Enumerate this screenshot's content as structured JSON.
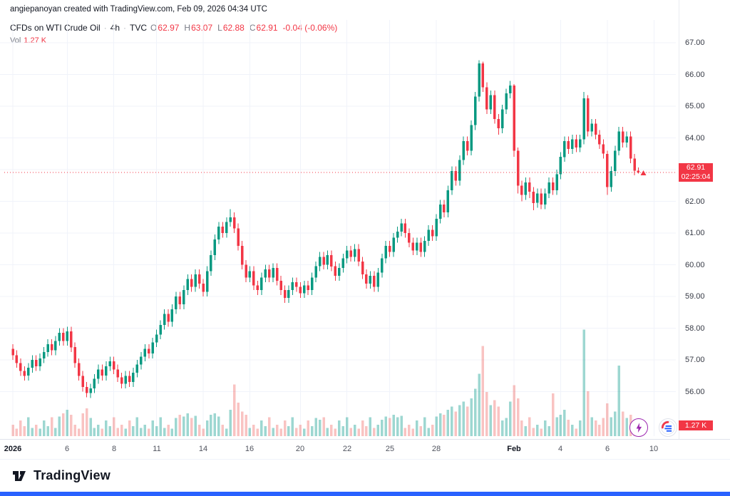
{
  "header": {
    "attribution": "angiepanoyan created with TradingView.com, Feb 09, 2026 04:34 UTC",
    "legend": {
      "symbol": "CFDs on WTI Crude Oil",
      "dot": "·",
      "interval": "4h",
      "exchange": "TVC",
      "ohlc": [
        {
          "key": "O",
          "value": "62.97"
        },
        {
          "key": "H",
          "value": "63.07"
        },
        {
          "key": "L",
          "value": "62.88"
        },
        {
          "key": "C",
          "value": "62.91"
        }
      ],
      "change": "-0.04 (-0.06%)",
      "vol_key": "Vol",
      "vol_value": "1.27 K"
    }
  },
  "price_axis": {
    "last_price_badge": {
      "price": "62.91",
      "countdown": "02:25:04"
    },
    "volume_badge": "1.27 K"
  },
  "footer": {
    "brand": "TradingView"
  },
  "icons": {
    "boost": "lightning-bolt",
    "brand_badge": "tradingview-round-logo"
  },
  "colors": {
    "up": "#089981",
    "down": "#f23645",
    "vol_up": "rgba(38,166,154,0.45)",
    "vol_down": "rgba(239,83,80,0.35)",
    "accent_red": "#f23645",
    "grid": "#f0f3fa",
    "blue_bar": "#2962ff"
  },
  "chart_data": {
    "type": "candlestick",
    "title": "CFDs on WTI Crude Oil · 4h · TVC",
    "last_price": 62.91,
    "last_change": -0.04,
    "last_change_pct": -0.06,
    "last_volume_k": 1.27,
    "countdown": "02:25:04",
    "visible_price_range": [
      54.6,
      67.7
    ],
    "y_ticks": [
      "67.00",
      "66.00",
      "65.00",
      "64.00",
      "63.00",
      "62.00",
      "61.00",
      "60.00",
      "59.00",
      "58.00",
      "57.00",
      "56.00"
    ],
    "time_ticks": [
      {
        "text": "2026",
        "index": 0,
        "bold": true
      },
      {
        "text": "6",
        "index": 14
      },
      {
        "text": "8",
        "index": 26
      },
      {
        "text": "11",
        "index": 37
      },
      {
        "text": "14",
        "index": 49
      },
      {
        "text": "16",
        "index": 61
      },
      {
        "text": "20",
        "index": 74
      },
      {
        "text": "22",
        "index": 86
      },
      {
        "text": "25",
        "index": 97
      },
      {
        "text": "28",
        "index": 109
      },
      {
        "text": "Feb",
        "index": 129,
        "bold": true
      },
      {
        "text": "4",
        "index": 141
      },
      {
        "text": "6",
        "index": 153
      },
      {
        "text": "10",
        "index": 165
      }
    ],
    "columns": [
      "open",
      "high",
      "low",
      "close",
      "volume_k"
    ],
    "candles": [
      [
        57.35,
        57.5,
        57.0,
        57.15,
        1.4
      ],
      [
        57.15,
        57.3,
        56.75,
        56.9,
        0.9
      ],
      [
        56.9,
        57.05,
        56.5,
        56.65,
        1.9
      ],
      [
        56.65,
        56.8,
        56.35,
        56.5,
        1.2
      ],
      [
        56.5,
        56.9,
        56.35,
        56.75,
        2.3
      ],
      [
        56.75,
        57.15,
        56.6,
        57.0,
        1.0
      ],
      [
        57.0,
        57.15,
        56.65,
        56.8,
        1.4
      ],
      [
        56.8,
        57.2,
        56.65,
        57.05,
        0.9
      ],
      [
        57.05,
        57.4,
        56.9,
        57.25,
        1.9
      ],
      [
        57.25,
        57.65,
        57.1,
        57.5,
        1.2
      ],
      [
        57.5,
        57.65,
        57.15,
        57.3,
        2.3
      ],
      [
        57.3,
        57.75,
        57.15,
        57.6,
        1.0
      ],
      [
        57.6,
        58.0,
        57.45,
        57.85,
        2.4
      ],
      [
        57.85,
        58.0,
        57.45,
        57.6,
        2.8
      ],
      [
        57.6,
        58.05,
        57.45,
        57.9,
        3.2
      ],
      [
        57.9,
        58.05,
        57.25,
        57.4,
        2.6
      ],
      [
        57.4,
        57.55,
        56.75,
        56.9,
        1.4
      ],
      [
        56.9,
        57.05,
        56.35,
        56.5,
        0.9
      ],
      [
        56.5,
        56.65,
        56.0,
        56.15,
        2.8
      ],
      [
        56.15,
        56.3,
        55.82,
        55.95,
        3.4
      ],
      [
        55.95,
        56.25,
        55.8,
        56.1,
        2.2
      ],
      [
        56.1,
        56.55,
        55.95,
        56.4,
        1.0
      ],
      [
        56.4,
        56.85,
        56.25,
        56.7,
        1.4
      ],
      [
        56.7,
        56.85,
        56.35,
        56.5,
        0.9
      ],
      [
        56.5,
        56.95,
        56.35,
        56.8,
        1.9
      ],
      [
        56.8,
        57.1,
        56.65,
        56.95,
        1.2
      ],
      [
        56.95,
        57.1,
        56.55,
        56.7,
        2.3
      ],
      [
        56.7,
        56.85,
        56.3,
        56.45,
        1.0
      ],
      [
        56.45,
        56.6,
        56.1,
        56.25,
        1.4
      ],
      [
        56.25,
        56.65,
        56.1,
        56.5,
        0.9
      ],
      [
        56.5,
        56.65,
        56.15,
        56.3,
        1.9
      ],
      [
        56.3,
        56.75,
        56.15,
        56.6,
        1.2
      ],
      [
        56.6,
        57.0,
        56.45,
        56.85,
        2.3
      ],
      [
        56.85,
        57.25,
        56.7,
        57.1,
        1.0
      ],
      [
        57.1,
        57.5,
        56.95,
        57.35,
        1.4
      ],
      [
        57.35,
        57.5,
        57.05,
        57.2,
        0.9
      ],
      [
        57.2,
        57.7,
        57.05,
        57.55,
        1.9
      ],
      [
        57.55,
        57.95,
        57.4,
        57.8,
        1.2
      ],
      [
        57.8,
        58.25,
        57.65,
        58.1,
        2.3
      ],
      [
        58.1,
        58.6,
        57.95,
        58.45,
        1.0
      ],
      [
        58.45,
        58.6,
        58.05,
        58.2,
        1.4
      ],
      [
        58.2,
        58.75,
        58.05,
        58.6,
        0.9
      ],
      [
        58.6,
        59.15,
        58.45,
        59.0,
        2.2
      ],
      [
        59.0,
        59.15,
        58.6,
        58.75,
        2.6
      ],
      [
        58.75,
        59.35,
        58.6,
        59.2,
        2.4
      ],
      [
        59.2,
        59.7,
        59.05,
        59.55,
        2.8
      ],
      [
        59.55,
        59.7,
        59.15,
        59.3,
        2.2
      ],
      [
        59.3,
        59.85,
        59.15,
        59.7,
        2.5
      ],
      [
        59.7,
        59.85,
        59.25,
        59.4,
        1.4
      ],
      [
        59.4,
        59.55,
        59.0,
        59.15,
        0.9
      ],
      [
        59.15,
        59.95,
        59.0,
        59.8,
        1.9
      ],
      [
        59.8,
        60.45,
        59.65,
        60.3,
        2.6
      ],
      [
        60.3,
        60.95,
        60.15,
        60.8,
        2.8
      ],
      [
        60.8,
        61.35,
        60.65,
        61.2,
        2.4
      ],
      [
        61.2,
        61.35,
        60.85,
        61.0,
        1.4
      ],
      [
        61.0,
        61.5,
        60.85,
        61.35,
        0.9
      ],
      [
        61.35,
        61.75,
        61.2,
        61.5,
        3.2
      ],
      [
        61.5,
        61.65,
        61.0,
        61.15,
        6.3
      ],
      [
        61.15,
        61.3,
        60.45,
        60.6,
        4.1
      ],
      [
        60.6,
        60.75,
        59.85,
        60.0,
        3.0
      ],
      [
        60.0,
        60.15,
        59.45,
        59.6,
        2.6
      ],
      [
        59.6,
        59.95,
        59.45,
        59.8,
        1.0
      ],
      [
        59.8,
        59.95,
        59.2,
        59.35,
        1.4
      ],
      [
        59.35,
        59.5,
        59.05,
        59.2,
        0.9
      ],
      [
        59.2,
        59.75,
        59.05,
        59.6,
        1.9
      ],
      [
        59.6,
        60.0,
        59.45,
        59.85,
        1.2
      ],
      [
        59.85,
        60.0,
        59.45,
        59.6,
        2.3
      ],
      [
        59.6,
        60.05,
        59.45,
        59.9,
        1.0
      ],
      [
        59.9,
        60.05,
        59.35,
        59.5,
        1.4
      ],
      [
        59.5,
        59.65,
        59.05,
        59.2,
        0.9
      ],
      [
        59.2,
        59.35,
        58.8,
        58.95,
        1.9
      ],
      [
        58.95,
        59.35,
        58.8,
        59.2,
        1.2
      ],
      [
        59.2,
        59.6,
        59.05,
        59.45,
        2.3
      ],
      [
        59.45,
        59.6,
        59.15,
        59.3,
        1.0
      ],
      [
        59.3,
        59.45,
        58.95,
        59.1,
        1.4
      ],
      [
        59.1,
        59.5,
        58.95,
        59.35,
        0.9
      ],
      [
        59.35,
        59.5,
        59.05,
        59.2,
        1.9
      ],
      [
        59.2,
        59.75,
        59.05,
        59.6,
        1.2
      ],
      [
        59.6,
        60.1,
        59.45,
        59.95,
        2.2
      ],
      [
        59.95,
        60.4,
        59.8,
        60.25,
        2.0
      ],
      [
        60.25,
        60.4,
        59.85,
        60.0,
        2.3
      ],
      [
        60.0,
        60.45,
        59.85,
        60.3,
        1.0
      ],
      [
        60.3,
        60.45,
        59.8,
        59.95,
        1.4
      ],
      [
        59.95,
        60.1,
        59.5,
        59.65,
        0.9
      ],
      [
        59.65,
        60.05,
        59.5,
        59.9,
        1.9
      ],
      [
        59.9,
        60.35,
        59.75,
        60.2,
        1.2
      ],
      [
        60.2,
        60.6,
        60.05,
        60.45,
        2.3
      ],
      [
        60.45,
        60.6,
        60.1,
        60.25,
        1.0
      ],
      [
        60.25,
        60.65,
        60.1,
        60.5,
        1.4
      ],
      [
        60.5,
        60.65,
        59.95,
        60.1,
        0.9
      ],
      [
        60.1,
        60.25,
        59.55,
        59.7,
        1.9
      ],
      [
        59.7,
        59.85,
        59.25,
        59.4,
        1.2
      ],
      [
        59.4,
        59.8,
        59.25,
        59.65,
        2.3
      ],
      [
        59.65,
        59.8,
        59.15,
        59.3,
        1.0
      ],
      [
        59.3,
        59.9,
        59.15,
        59.75,
        1.4
      ],
      [
        59.75,
        60.35,
        59.6,
        60.2,
        2.0
      ],
      [
        60.2,
        60.75,
        60.05,
        60.6,
        2.4
      ],
      [
        60.6,
        60.75,
        60.25,
        60.4,
        2.2
      ],
      [
        60.4,
        61.0,
        60.25,
        60.85,
        2.6
      ],
      [
        60.85,
        61.2,
        60.7,
        61.05,
        2.3
      ],
      [
        61.05,
        61.45,
        60.9,
        61.3,
        2.5
      ],
      [
        61.3,
        61.45,
        60.85,
        61.0,
        1.0
      ],
      [
        61.0,
        61.15,
        60.55,
        60.7,
        1.4
      ],
      [
        60.7,
        60.85,
        60.3,
        60.45,
        0.9
      ],
      [
        60.45,
        60.85,
        60.3,
        60.7,
        1.9
      ],
      [
        60.7,
        60.85,
        60.25,
        60.4,
        1.2
      ],
      [
        60.4,
        60.9,
        60.25,
        60.75,
        2.3
      ],
      [
        60.75,
        61.25,
        60.6,
        61.1,
        1.0
      ],
      [
        61.1,
        61.25,
        60.75,
        60.9,
        1.4
      ],
      [
        60.9,
        61.6,
        60.75,
        61.45,
        2.4
      ],
      [
        61.45,
        62.05,
        61.3,
        61.9,
        2.8
      ],
      [
        61.9,
        62.05,
        61.5,
        61.65,
        2.6
      ],
      [
        61.65,
        62.5,
        61.5,
        62.35,
        3.2
      ],
      [
        62.35,
        63.1,
        62.2,
        62.95,
        3.6
      ],
      [
        62.95,
        63.1,
        62.5,
        62.65,
        3.0
      ],
      [
        62.65,
        63.45,
        62.5,
        63.3,
        3.8
      ],
      [
        63.3,
        64.05,
        63.15,
        63.9,
        4.2
      ],
      [
        63.9,
        64.05,
        63.45,
        63.6,
        3.6
      ],
      [
        63.6,
        64.55,
        63.45,
        64.4,
        4.6
      ],
      [
        64.4,
        65.45,
        64.25,
        65.3,
        5.8
      ],
      [
        65.3,
        66.45,
        65.15,
        66.35,
        7.6
      ],
      [
        66.35,
        66.4,
        65.45,
        65.6,
        11.0
      ],
      [
        65.6,
        65.75,
        64.75,
        64.9,
        5.4
      ],
      [
        64.9,
        65.5,
        64.75,
        65.35,
        3.8
      ],
      [
        65.35,
        65.5,
        64.45,
        64.6,
        4.4
      ],
      [
        64.6,
        64.75,
        64.1,
        64.3,
        3.6
      ],
      [
        64.3,
        65.05,
        64.15,
        64.9,
        1.9
      ],
      [
        64.9,
        65.55,
        64.75,
        65.4,
        2.2
      ],
      [
        65.4,
        65.8,
        65.25,
        65.65,
        4.2
      ],
      [
        65.65,
        65.7,
        63.4,
        63.6,
        6.2
      ],
      [
        63.6,
        63.7,
        62.25,
        62.5,
        4.6
      ],
      [
        62.5,
        62.65,
        62.0,
        62.2,
        1.9
      ],
      [
        62.2,
        62.75,
        62.05,
        62.6,
        1.2
      ],
      [
        62.6,
        62.75,
        62.1,
        62.3,
        2.3
      ],
      [
        62.3,
        62.45,
        61.72,
        61.95,
        1.0
      ],
      [
        61.95,
        62.4,
        61.8,
        62.25,
        1.4
      ],
      [
        62.25,
        62.4,
        61.75,
        61.9,
        0.9
      ],
      [
        61.9,
        62.4,
        61.75,
        62.25,
        1.9
      ],
      [
        62.25,
        62.75,
        62.1,
        62.6,
        1.2
      ],
      [
        62.6,
        62.75,
        62.2,
        62.35,
        5.2
      ],
      [
        62.35,
        63.0,
        62.2,
        62.85,
        2.3
      ],
      [
        62.85,
        63.55,
        62.7,
        63.4,
        2.6
      ],
      [
        63.4,
        64.05,
        63.25,
        63.9,
        3.2
      ],
      [
        63.9,
        64.05,
        63.5,
        63.65,
        2.0
      ],
      [
        63.65,
        64.1,
        63.5,
        63.95,
        1.4
      ],
      [
        63.95,
        64.1,
        63.55,
        63.7,
        0.9
      ],
      [
        63.7,
        64.1,
        63.55,
        63.95,
        1.9
      ],
      [
        63.95,
        65.45,
        63.8,
        65.25,
        13.0
      ],
      [
        65.25,
        65.35,
        64.05,
        64.2,
        5.5
      ],
      [
        64.2,
        64.6,
        64.05,
        64.45,
        2.3
      ],
      [
        64.45,
        64.6,
        63.95,
        64.1,
        1.9
      ],
      [
        64.1,
        64.25,
        63.65,
        63.8,
        1.4
      ],
      [
        63.8,
        63.95,
        63.35,
        63.5,
        2.2
      ],
      [
        63.5,
        63.6,
        62.2,
        62.45,
        4.0
      ],
      [
        62.45,
        63.1,
        62.3,
        62.95,
        2.3
      ],
      [
        62.95,
        63.75,
        62.8,
        63.6,
        3.0
      ],
      [
        63.6,
        64.35,
        63.45,
        64.2,
        8.6
      ],
      [
        64.2,
        64.35,
        63.7,
        63.85,
        3.0
      ],
      [
        63.85,
        64.2,
        63.7,
        64.05,
        2.2
      ],
      [
        64.05,
        64.2,
        63.2,
        63.35,
        2.6
      ],
      [
        63.35,
        63.5,
        62.82,
        62.97,
        1.9
      ],
      [
        62.97,
        63.07,
        62.88,
        62.91,
        1.27
      ]
    ]
  }
}
